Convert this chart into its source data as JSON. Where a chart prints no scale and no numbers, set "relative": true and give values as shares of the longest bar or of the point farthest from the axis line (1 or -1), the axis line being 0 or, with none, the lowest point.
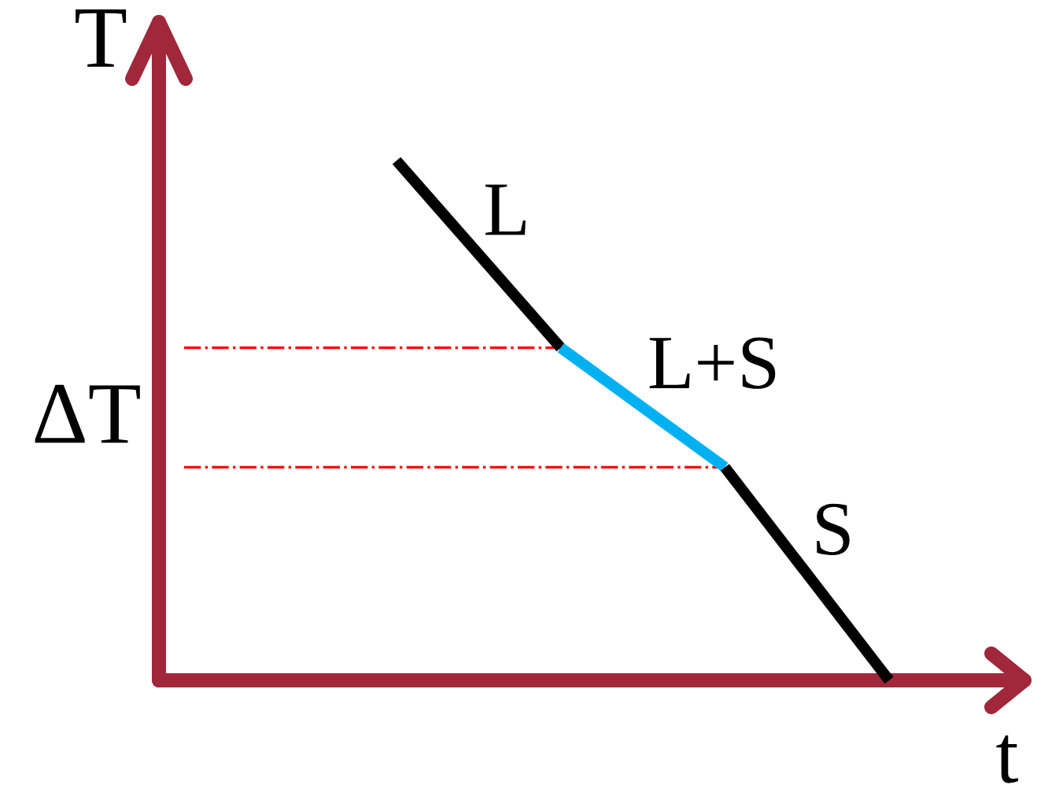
{
  "chart_data": {
    "type": "line",
    "relative": true,
    "xlabel": "t",
    "ylabel": "T",
    "annotations": [
      "ΔT"
    ],
    "categories": [
      null,
      null,
      null,
      null
    ],
    "series": [
      {
        "name": "L",
        "color": "#000000",
        "values": [
          1,
          0.64,
          null,
          null
        ]
      },
      {
        "name": "L+S",
        "color": "#00b0f0",
        "values": [
          null,
          0.64,
          0.41,
          null
        ]
      },
      {
        "name": "S",
        "color": "#000000",
        "values": [
          null,
          null,
          0.41,
          0
        ]
      }
    ],
    "ref_lines": [
      {
        "axis": "y",
        "value": 0.64,
        "color": "#ff0000",
        "line_style": "dashdot"
      },
      {
        "axis": "y",
        "value": 0.41,
        "color": "#ff0000",
        "line_style": "dashdot"
      }
    ]
  }
}
